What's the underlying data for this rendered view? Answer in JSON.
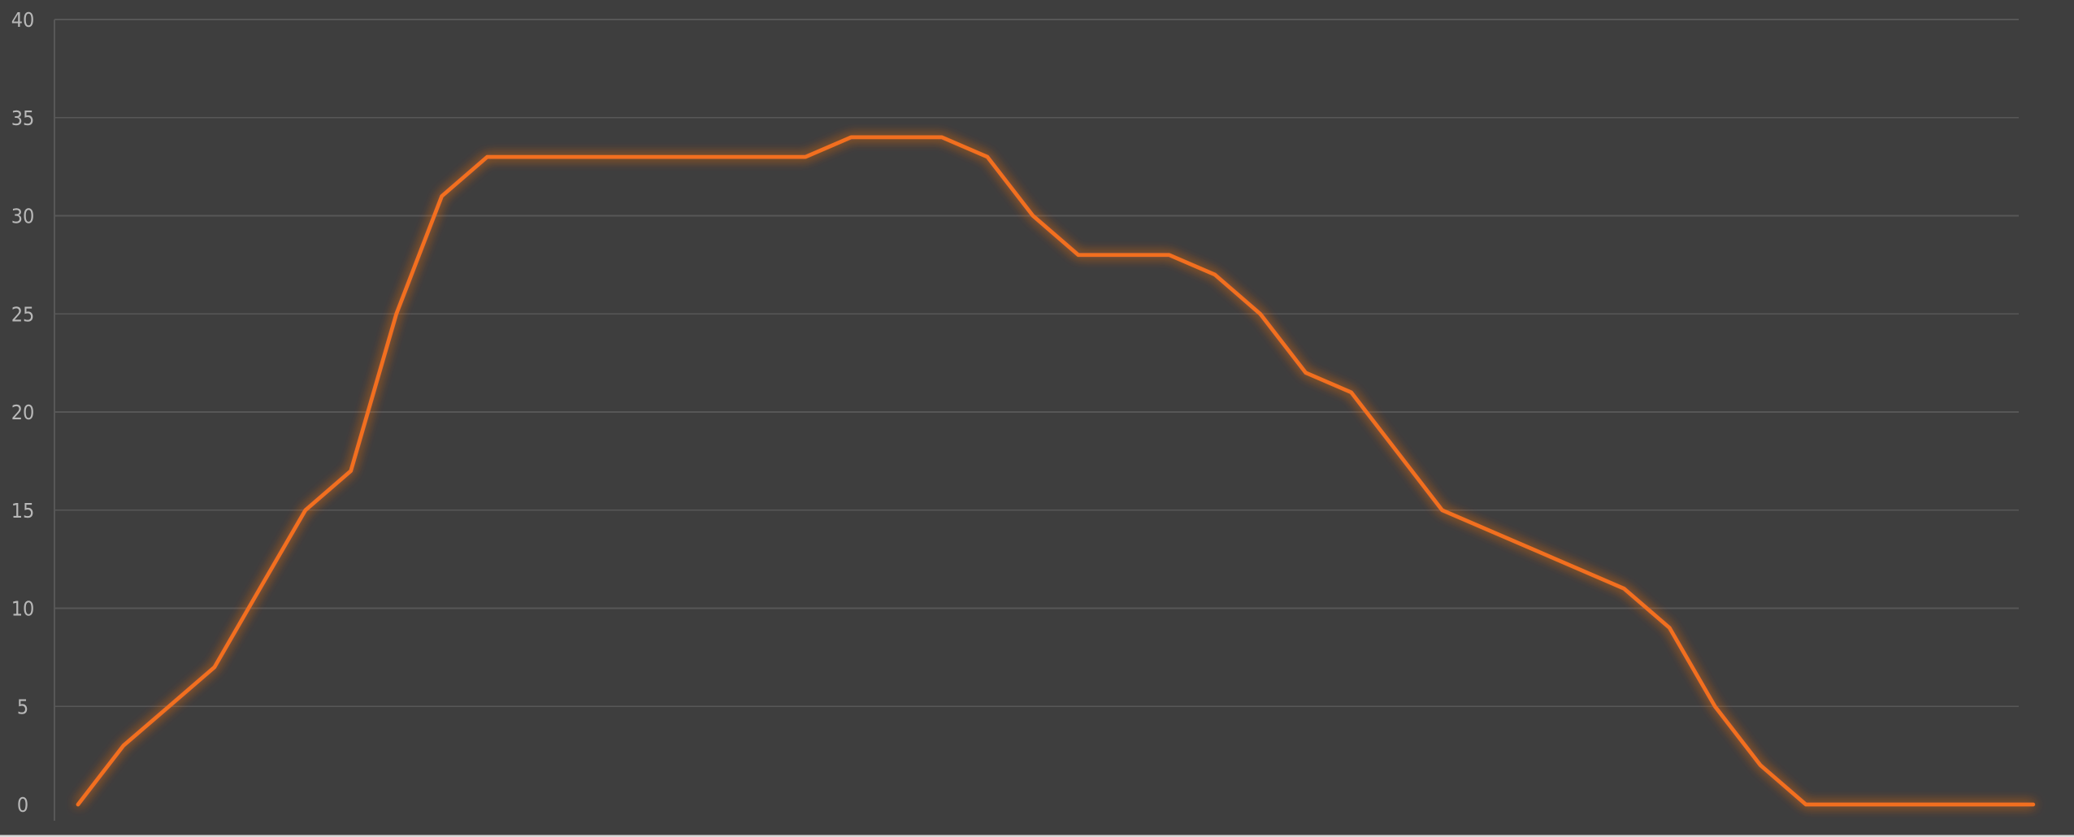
{
  "chart_data": {
    "type": "line",
    "title": "",
    "xlabel": "",
    "ylabel": "",
    "ylim": [
      0,
      40
    ],
    "y_ticks": [
      "0",
      "5",
      "10",
      "15",
      "20",
      "25",
      "30",
      "35",
      "40"
    ],
    "x_ticks": [],
    "grid": true,
    "legend": "none",
    "background_color": "#3e3e3e",
    "grid_color": "#575757",
    "series": [
      {
        "color": "#f26f1f",
        "x": [
          1,
          2,
          3,
          4,
          5,
          6,
          7,
          8,
          9,
          10,
          11,
          12,
          13,
          14,
          15,
          16,
          17,
          18,
          19,
          20,
          21,
          22,
          23,
          24,
          25,
          26,
          27,
          28,
          29,
          30,
          31,
          32,
          33,
          34,
          35,
          36,
          37,
          38,
          39,
          40,
          41,
          42,
          43,
          44
        ],
        "values": [
          0,
          3,
          5,
          7,
          11,
          15,
          17,
          25,
          31,
          33,
          33,
          33,
          33,
          33,
          33,
          33,
          33,
          34,
          34,
          34,
          33,
          30,
          28,
          28,
          28,
          27,
          25,
          22,
          21,
          18,
          15,
          14,
          13,
          12,
          11,
          9,
          5,
          2,
          0,
          0,
          0,
          0,
          0,
          0
        ]
      }
    ]
  }
}
